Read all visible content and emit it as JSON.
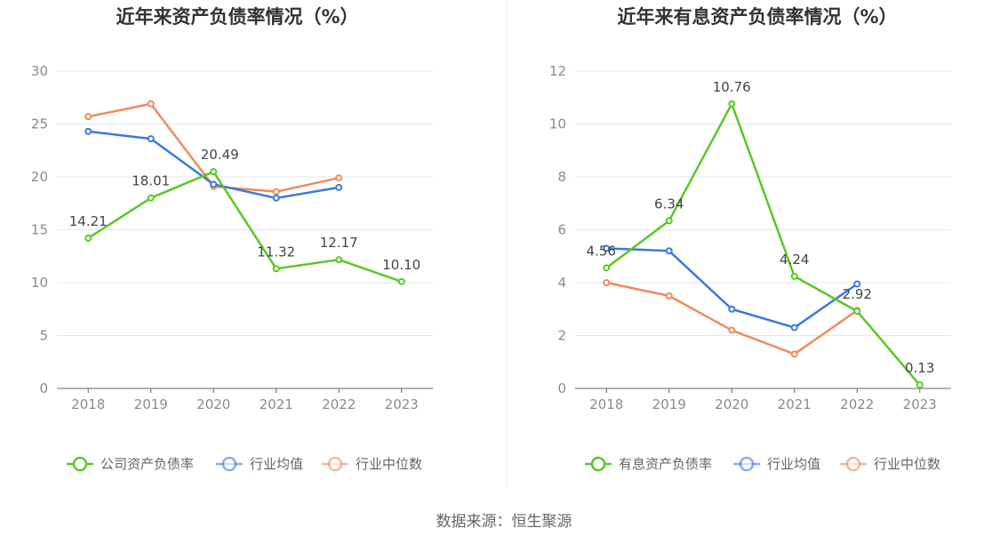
{
  "colors": {
    "green": "#5ac728",
    "blue": "#3b78e0",
    "orange": "#f08a5d",
    "grid": "#e4e7ee",
    "axis": "#666666",
    "divider": "#eeeeee"
  },
  "source": "数据来源：恒生聚源",
  "chart_data": [
    {
      "type": "line",
      "title": "近年来资产负债率情况（%）",
      "categories": [
        "2018",
        "2019",
        "2020",
        "2021",
        "2022",
        "2023"
      ],
      "ylim": [
        0,
        30
      ],
      "yticks": [
        0,
        5,
        10,
        15,
        20,
        25,
        30
      ],
      "grid": true,
      "legend_position": "bottom",
      "series": [
        {
          "name": "公司资产负债率",
          "color": "#5ac728",
          "values": [
            14.21,
            18.01,
            20.49,
            11.32,
            12.17,
            10.1
          ],
          "labels": [
            "14.21",
            "18.01",
            "20.49",
            "11.32",
            "12.17",
            "10.10"
          ]
        },
        {
          "name": "行业均值",
          "color": "#3b78e0",
          "values": [
            24.3,
            23.6,
            19.3,
            18.0,
            19.0,
            null
          ]
        },
        {
          "name": "行业中位数",
          "color": "#f08a5d",
          "values": [
            25.7,
            26.9,
            19.1,
            18.6,
            19.9,
            null
          ]
        }
      ]
    },
    {
      "type": "line",
      "title": "近年来有息资产负债率情况（%）",
      "categories": [
        "2018",
        "2019",
        "2020",
        "2021",
        "2022",
        "2023"
      ],
      "ylim": [
        0,
        12
      ],
      "yticks": [
        0,
        2,
        4,
        6,
        8,
        10,
        12
      ],
      "grid": true,
      "legend_position": "bottom",
      "series": [
        {
          "name": "有息资产负债率",
          "color": "#5ac728",
          "values": [
            4.56,
            6.34,
            10.76,
            4.24,
            2.92,
            0.13
          ],
          "labels": [
            "4.56",
            "6.34",
            "10.76",
            "4.24",
            "2.92",
            "0.13"
          ]
        },
        {
          "name": "行业均值",
          "color": "#3b78e0",
          "values": [
            5.3,
            5.2,
            3.0,
            2.3,
            3.95,
            null
          ]
        },
        {
          "name": "行业中位数",
          "color": "#f08a5d",
          "values": [
            4.0,
            3.5,
            2.2,
            1.3,
            2.95,
            null
          ]
        }
      ]
    }
  ]
}
